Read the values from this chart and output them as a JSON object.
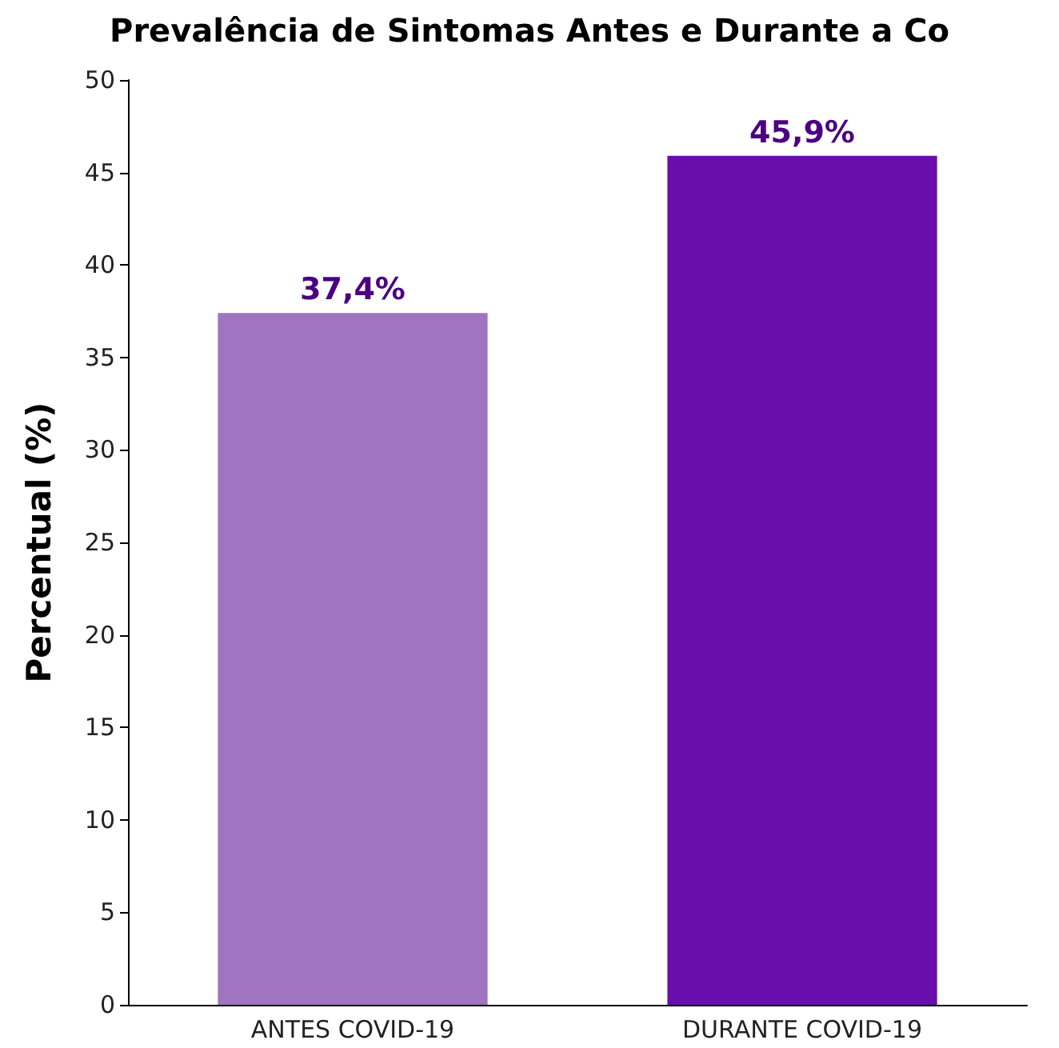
{
  "chart_data": {
    "type": "bar",
    "title": "Prevalência de Sintomas Antes e Durante a Co",
    "ylabel": "Percentual (%)",
    "categories": [
      "ANTES COVID-19",
      "DURANTE COVID-19"
    ],
    "values": [
      37.4,
      45.9
    ],
    "colors": [
      "#a074c0",
      "#6a0dad"
    ],
    "value_labels": [
      "37,4%",
      "45,9%"
    ],
    "ylim": [
      0,
      50
    ],
    "yticks": [
      0,
      5,
      10,
      15,
      20,
      25,
      30,
      35,
      40,
      45,
      50
    ],
    "grid": false
  }
}
